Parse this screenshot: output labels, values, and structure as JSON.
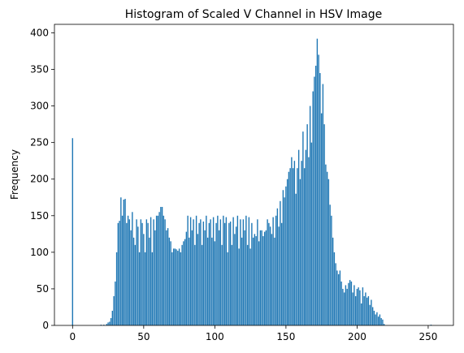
{
  "chart_data": {
    "type": "bar",
    "title": "Histogram of Scaled V Channel in HSV Image",
    "ylabel": "Frequency",
    "color": "#1f77b4",
    "x": [
      0,
      1,
      2,
      3,
      4,
      5,
      6,
      7,
      8,
      9,
      10,
      11,
      12,
      13,
      14,
      15,
      16,
      17,
      18,
      19,
      20,
      21,
      22,
      23,
      24,
      25,
      26,
      27,
      28,
      29,
      30,
      31,
      32,
      33,
      34,
      35,
      36,
      37,
      38,
      39,
      40,
      41,
      42,
      43,
      44,
      45,
      46,
      47,
      48,
      49,
      50,
      51,
      52,
      53,
      54,
      55,
      56,
      57,
      58,
      59,
      60,
      61,
      62,
      63,
      64,
      65,
      66,
      67,
      68,
      69,
      70,
      71,
      72,
      73,
      74,
      75,
      76,
      77,
      78,
      79,
      80,
      81,
      82,
      83,
      84,
      85,
      86,
      87,
      88,
      89,
      90,
      91,
      92,
      93,
      94,
      95,
      96,
      97,
      98,
      99,
      100,
      101,
      102,
      103,
      104,
      105,
      106,
      107,
      108,
      109,
      110,
      111,
      112,
      113,
      114,
      115,
      116,
      117,
      118,
      119,
      120,
      121,
      122,
      123,
      124,
      125,
      126,
      127,
      128,
      129,
      130,
      131,
      132,
      133,
      134,
      135,
      136,
      137,
      138,
      139,
      140,
      141,
      142,
      143,
      144,
      145,
      146,
      147,
      148,
      149,
      150,
      151,
      152,
      153,
      154,
      155,
      156,
      157,
      158,
      159,
      160,
      161,
      162,
      163,
      164,
      165,
      166,
      167,
      168,
      169,
      170,
      171,
      172,
      173,
      174,
      175,
      176,
      177,
      178,
      179,
      180,
      181,
      182,
      183,
      184,
      185,
      186,
      187,
      188,
      189,
      190,
      191,
      192,
      193,
      194,
      195,
      196,
      197,
      198,
      199,
      200,
      201,
      202,
      203,
      204,
      205,
      206,
      207,
      208,
      209,
      210,
      211,
      212,
      213,
      214,
      215,
      216,
      217,
      218,
      219,
      220,
      221,
      222,
      223,
      224,
      225,
      226,
      227,
      228,
      229,
      230,
      231,
      232,
      233,
      234,
      235,
      236,
      237,
      238,
      239,
      240,
      241,
      242,
      243,
      244,
      245,
      246,
      247,
      248,
      249,
      250,
      251,
      252,
      253,
      254,
      255
    ],
    "values": [
      256,
      0,
      0,
      0,
      0,
      0,
      0,
      0,
      0,
      0,
      0,
      0,
      0,
      0,
      0,
      0,
      0,
      0,
      0,
      0,
      1,
      0,
      1,
      0,
      2,
      4,
      5,
      10,
      20,
      40,
      60,
      100,
      140,
      143,
      175,
      150,
      172,
      173,
      140,
      150,
      145,
      130,
      155,
      120,
      110,
      145,
      135,
      100,
      145,
      140,
      125,
      100,
      145,
      140,
      120,
      148,
      100,
      145,
      130,
      150,
      150,
      155,
      162,
      162,
      150,
      145,
      130,
      133,
      120,
      115,
      100,
      105,
      105,
      104,
      102,
      105,
      100,
      110,
      115,
      118,
      128,
      150,
      120,
      148,
      130,
      145,
      110,
      150,
      125,
      140,
      145,
      110,
      142,
      130,
      150,
      120,
      140,
      145,
      120,
      148,
      115,
      140,
      150,
      130,
      145,
      110,
      150,
      140,
      148,
      100,
      140,
      142,
      110,
      148,
      125,
      135,
      150,
      105,
      145,
      120,
      145,
      130,
      150,
      110,
      148,
      105,
      140,
      120,
      125,
      122,
      145,
      115,
      130,
      130,
      122,
      128,
      130,
      145,
      140,
      135,
      125,
      148,
      120,
      150,
      160,
      135,
      170,
      140,
      185,
      175,
      190,
      200,
      210,
      215,
      230,
      215,
      225,
      180,
      215,
      240,
      200,
      225,
      265,
      215,
      240,
      275,
      230,
      300,
      250,
      320,
      340,
      355,
      392,
      370,
      345,
      290,
      330,
      275,
      220,
      210,
      200,
      165,
      150,
      120,
      100,
      85,
      75,
      70,
      75,
      60,
      50,
      45,
      55,
      50,
      58,
      62,
      60,
      45,
      55,
      40,
      50,
      52,
      48,
      30,
      52,
      40,
      45,
      38,
      40,
      28,
      35,
      25,
      20,
      15,
      18,
      12,
      15,
      10,
      8,
      2,
      0,
      0,
      0,
      0,
      0,
      0,
      0,
      0,
      0,
      0,
      0,
      0,
      0,
      0,
      0,
      0,
      0,
      0,
      0,
      0,
      0,
      0,
      0,
      0,
      0,
      0,
      0,
      0,
      0,
      0,
      0,
      0,
      1,
      0,
      0,
      0
    ],
    "xlim": [
      -12.75,
      267.75
    ],
    "ylim": [
      0,
      411.6
    ],
    "xticks": [
      0,
      50,
      100,
      150,
      200,
      250
    ],
    "yticks": [
      0,
      50,
      100,
      150,
      200,
      250,
      300,
      350,
      400
    ]
  }
}
